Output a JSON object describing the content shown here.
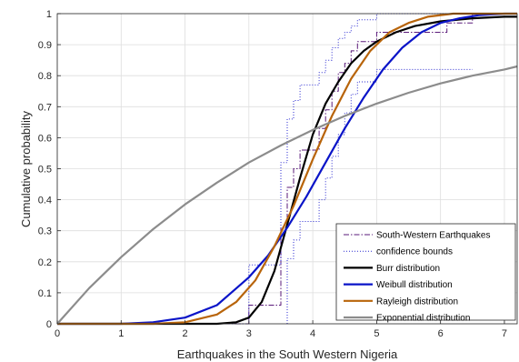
{
  "chart_data": {
    "type": "line",
    "xlabel": "Earthquakes in the South Western Nigeria",
    "ylabel": "Cumulative probability",
    "xlim": [
      0,
      7.2
    ],
    "ylim": [
      0,
      1
    ],
    "x_ticks": [
      "0",
      "1",
      "2",
      "3",
      "4",
      "5",
      "6",
      "7"
    ],
    "y_ticks": [
      "0",
      "0.1",
      "0.2",
      "0.3",
      "0.4",
      "0.5",
      "0.6",
      "0.7",
      "0.8",
      "0.9",
      "1"
    ],
    "grid": true,
    "legend_position": "bottom-right",
    "series": [
      {
        "name": "South-Western Earthquakes",
        "style": "dash-dot-step",
        "color": "#5a1a7a",
        "x": [
          0,
          3.0,
          3.0,
          3.5,
          3.5,
          3.6,
          3.6,
          3.7,
          3.7,
          3.8,
          3.8,
          4.1,
          4.1,
          4.2,
          4.2,
          4.3,
          4.3,
          4.4,
          4.4,
          4.5,
          4.5,
          4.6,
          4.6,
          4.7,
          4.7,
          5.0,
          5.0,
          6.1,
          6.1,
          6.5,
          6.5
        ],
        "y": [
          0,
          0,
          0.06,
          0.06,
          0.31,
          0.31,
          0.44,
          0.44,
          0.5,
          0.5,
          0.56,
          0.56,
          0.63,
          0.63,
          0.69,
          0.69,
          0.75,
          0.75,
          0.81,
          0.81,
          0.84,
          0.84,
          0.88,
          0.88,
          0.91,
          0.91,
          0.94,
          0.94,
          0.97,
          0.97,
          1.0
        ]
      },
      {
        "name": "confidence bounds",
        "style": "dotted-step",
        "color": "#2a2ad0",
        "bounds": [
          {
            "x": [
              0,
              3.0,
              3.0,
              3.5,
              3.5,
              3.6,
              3.6,
              3.7,
              3.7,
              3.8,
              3.8,
              4.1,
              4.1,
              4.2,
              4.2,
              4.3,
              4.3,
              4.4,
              4.4,
              4.5,
              4.5,
              4.6,
              4.6,
              4.7,
              4.7,
              5.0,
              5.0,
              6.1
            ],
            "y": [
              0,
              0,
              0.19,
              0.19,
              0.52,
              0.52,
              0.66,
              0.66,
              0.72,
              0.72,
              0.77,
              0.77,
              0.81,
              0.81,
              0.85,
              0.85,
              0.89,
              0.89,
              0.92,
              0.92,
              0.94,
              0.94,
              0.96,
              0.96,
              0.98,
              0.98,
              1.0,
              1.0
            ]
          },
          {
            "x": [
              3.6,
              3.6,
              3.7,
              3.7,
              3.8,
              3.8,
              4.1,
              4.1,
              4.2,
              4.2,
              4.3,
              4.3,
              4.4,
              4.4,
              4.5,
              4.5,
              4.6,
              4.6,
              4.7,
              4.7,
              5.0,
              5.0,
              6.5
            ],
            "y": [
              0.0,
              0.21,
              0.21,
              0.27,
              0.27,
              0.33,
              0.33,
              0.4,
              0.4,
              0.47,
              0.47,
              0.54,
              0.54,
              0.61,
              0.61,
              0.68,
              0.68,
              0.74,
              0.74,
              0.78,
              0.78,
              0.82,
              0.82
            ]
          }
        ]
      },
      {
        "name": "Burr distribution",
        "style": "solid",
        "color": "#000000",
        "x": [
          0,
          2.5,
          2.8,
          3.0,
          3.2,
          3.4,
          3.6,
          3.8,
          4.0,
          4.2,
          4.4,
          4.6,
          4.8,
          5.0,
          5.3,
          5.6,
          6.0,
          6.5,
          7.0,
          7.2
        ],
        "y": [
          0,
          0.0,
          0.005,
          0.02,
          0.07,
          0.17,
          0.32,
          0.47,
          0.61,
          0.71,
          0.78,
          0.84,
          0.88,
          0.91,
          0.94,
          0.96,
          0.975,
          0.985,
          0.99,
          0.99
        ]
      },
      {
        "name": "Weibull distribution",
        "style": "solid",
        "color": "#0a14c8",
        "x": [
          0,
          1.0,
          1.5,
          2.0,
          2.5,
          3.0,
          3.3,
          3.6,
          3.9,
          4.2,
          4.5,
          4.8,
          5.1,
          5.4,
          5.7,
          6.0,
          6.3,
          6.6,
          7.0,
          7.2
        ],
        "y": [
          0,
          0.0,
          0.005,
          0.02,
          0.06,
          0.15,
          0.22,
          0.31,
          0.41,
          0.52,
          0.63,
          0.73,
          0.82,
          0.89,
          0.94,
          0.97,
          0.985,
          0.995,
          1.0,
          1.0
        ]
      },
      {
        "name": "Rayleigh distribution",
        "style": "solid",
        "color": "#b8640a",
        "x": [
          0,
          1.5,
          2.0,
          2.5,
          2.8,
          3.1,
          3.4,
          3.7,
          4.0,
          4.3,
          4.6,
          4.9,
          5.2,
          5.5,
          5.8,
          6.2,
          6.6,
          7.2
        ],
        "y": [
          0,
          0.0,
          0.005,
          0.03,
          0.07,
          0.14,
          0.25,
          0.38,
          0.53,
          0.67,
          0.79,
          0.88,
          0.94,
          0.97,
          0.99,
          1.0,
          1.0,
          1.0
        ]
      },
      {
        "name": "Exponential distribution",
        "style": "solid",
        "color": "#8c8c8c",
        "x": [
          0,
          0.5,
          1.0,
          1.5,
          2.0,
          2.5,
          3.0,
          3.5,
          4.0,
          4.5,
          5.0,
          5.5,
          6.0,
          6.5,
          7.0,
          7.2
        ],
        "y": [
          0,
          0.115,
          0.215,
          0.305,
          0.385,
          0.455,
          0.52,
          0.575,
          0.625,
          0.67,
          0.71,
          0.745,
          0.775,
          0.8,
          0.82,
          0.83
        ]
      }
    ]
  }
}
